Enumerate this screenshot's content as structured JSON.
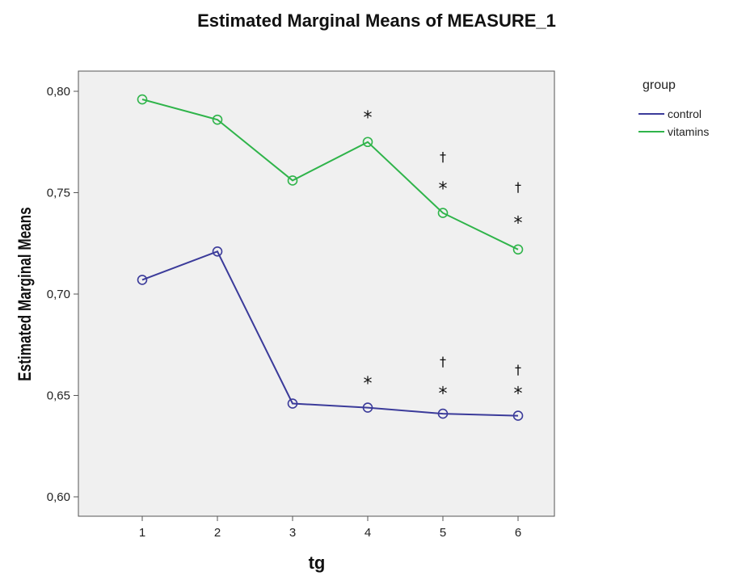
{
  "chart_data": {
    "type": "line",
    "title": "Estimated Marginal Means of MEASURE_1",
    "xlabel": "tg",
    "ylabel": "Estimated Marginal Means",
    "x": [
      "1",
      "2",
      "3",
      "4",
      "5",
      "6"
    ],
    "yticks": [
      "0,60",
      "0,65",
      "0,70",
      "0,75",
      "0,80"
    ],
    "ylim": [
      0.595,
      0.81
    ],
    "grid": false,
    "legend": {
      "title": "group",
      "position": "right"
    },
    "series": [
      {
        "name": "control",
        "color": "#3b3b9a",
        "values": [
          0.707,
          0.721,
          0.646,
          0.644,
          0.641,
          0.64
        ]
      },
      {
        "name": "vitamins",
        "color": "#2fb44a",
        "values": [
          0.796,
          0.786,
          0.756,
          0.775,
          0.74,
          0.722
        ]
      }
    ],
    "annotations": [
      {
        "x": "4",
        "y": 0.788,
        "text": "*"
      },
      {
        "x": "5",
        "y": 0.768,
        "text": "†"
      },
      {
        "x": "5",
        "y": 0.753,
        "text": "*"
      },
      {
        "x": "6",
        "y": 0.753,
        "text": "†"
      },
      {
        "x": "6",
        "y": 0.736,
        "text": "*"
      },
      {
        "x": "4",
        "y": 0.657,
        "text": "*"
      },
      {
        "x": "5",
        "y": 0.667,
        "text": "†"
      },
      {
        "x": "5",
        "y": 0.652,
        "text": "*"
      },
      {
        "x": "6",
        "y": 0.663,
        "text": "†"
      },
      {
        "x": "6",
        "y": 0.652,
        "text": "*"
      }
    ]
  }
}
